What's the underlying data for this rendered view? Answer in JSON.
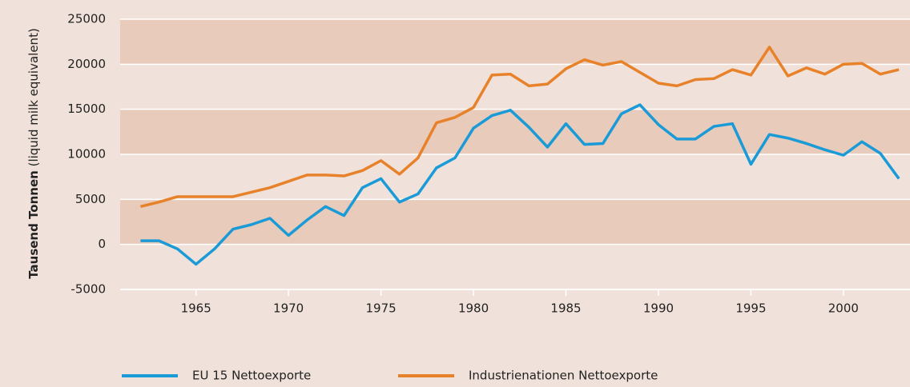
{
  "chart_data": {
    "type": "line",
    "ylabel": "Tausend Tonnen",
    "ylabel_unit": "(liquid milk equivalent)",
    "x": [
      1962,
      1963,
      1964,
      1965,
      1966,
      1967,
      1968,
      1969,
      1970,
      1971,
      1972,
      1973,
      1974,
      1975,
      1976,
      1977,
      1978,
      1979,
      1980,
      1981,
      1982,
      1983,
      1984,
      1985,
      1986,
      1987,
      1988,
      1989,
      1990,
      1991,
      1992,
      1993,
      1994,
      1995,
      1996,
      1997,
      1998,
      1999,
      2000,
      2001,
      2002,
      2003
    ],
    "series": [
      {
        "name": "EU 15 Nettoexporte",
        "color": "#1a9ad6",
        "values": [
          400,
          400,
          -500,
          -2200,
          -500,
          1700,
          2200,
          2900,
          1000,
          2700,
          4200,
          3200,
          6300,
          7300,
          4700,
          5600,
          8500,
          9600,
          12900,
          14300,
          14900,
          13000,
          10800,
          13400,
          11100,
          11200,
          14500,
          15500,
          13300,
          11700,
          11700,
          13100,
          13400,
          8900,
          12200,
          11800,
          11200,
          10500,
          9900,
          11400,
          10100,
          7300
        ]
      },
      {
        "name": "Industrienationen Nettoexporte",
        "color": "#e8822a",
        "values": [
          4200,
          4700,
          5300,
          5300,
          5300,
          5300,
          5800,
          6300,
          7000,
          7700,
          7700,
          7600,
          8200,
          9300,
          7800,
          9600,
          13500,
          14100,
          15200,
          18800,
          18900,
          17600,
          17800,
          19500,
          20500,
          19900,
          20300,
          19100,
          17900,
          17600,
          18300,
          18400,
          19400,
          18800,
          21900,
          18700,
          19600,
          18900,
          20000,
          20100,
          18900,
          19400
        ]
      }
    ],
    "xlim": [
      1960.9,
      2003.6
    ],
    "xticks": [
      1965,
      1970,
      1975,
      1980,
      1985,
      1990,
      1995,
      2000
    ],
    "ylim": [
      -5000,
      25000
    ],
    "yticks": [
      -5000,
      0,
      5000,
      10000,
      15000,
      20000,
      25000
    ],
    "grid": true,
    "bands": true,
    "band_color": "#e8cbbb",
    "legend": "bottom"
  }
}
